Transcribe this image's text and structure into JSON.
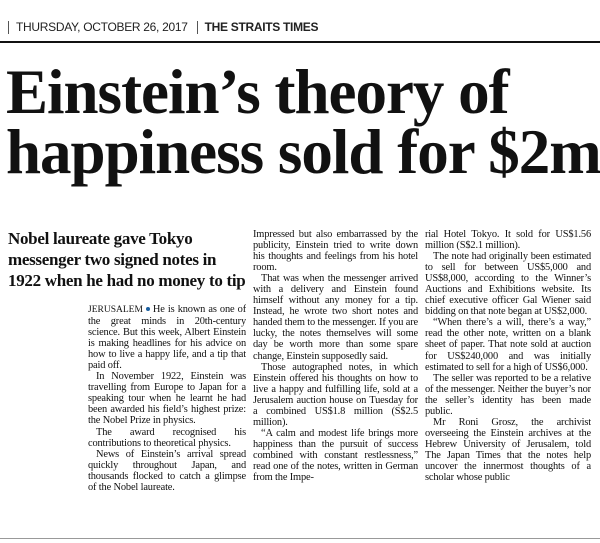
{
  "header": {
    "date": "THURSDAY, OCTOBER 26, 2017",
    "publication": "THE STRAITS TIMES"
  },
  "article": {
    "headline_lines": [
      "Einstein’s theory of",
      "happiness sold for $2m"
    ],
    "subheadline_lines": [
      "Nobel laureate gave Tokyo",
      "messenger two signed notes in",
      "1922 when he had no money to tip"
    ],
    "dateline": "JERUSALEM",
    "columns": [
      [
        "He is known as one of the great minds in 20th-century science. But this week, Albert Einstein is making headlines for his advice on how to live a happy life, and a tip that paid off.",
        "In November 1922, Einstein was travelling from Europe to Japan for a speaking tour when he learnt he had been awarded his field’s highest prize: the Nobel Prize in physics.",
        "The award recognised his contributions to theoretical physics.",
        "News of Einstein’s arrival spread quickly throughout Japan, and thousands flocked to catch a glimpse of the Nobel laureate."
      ],
      [
        "Impressed but also embarrassed by the publicity, Einstein tried to write down his thoughts and feelings from his hotel room.",
        "That was when the messenger arrived with a delivery and Einstein found himself without any money for a tip. Instead, he wrote two short notes and handed them to the messenger. If you are lucky, the notes themselves will some day be worth more than some spare change, Einstein supposedly said.",
        "Those autographed notes, in which Einstein offered his thoughts on how to live a happy and fulfilling life, sold at a Jerusalem auction house on Tuesday for a combined US$1.8 million (S$2.5 million).",
        "“A calm and modest life brings more happiness than the pursuit of success combined with constant restlessness,” read one of the notes, written in German from the Impe-"
      ],
      [
        "rial Hotel Tokyo. It sold for US$1.56 million (S$2.1 million).",
        "The note had originally been estimated to sell for between US$5,000 and US$8,000, according to the Winner’s Auctions and Exhibitions website. Its chief executive officer Gal Wiener said bidding on that note began at US$2,000.",
        "“When there’s a will, there’s a way,” read the other note, written on a blank sheet of paper. That note sold at auction for US$240,000 and was initially estimated to sell for a high of US$6,000.",
        "The seller was reported to be a relative of the messenger. Neither the buyer’s nor the seller’s identity has been made public.",
        "Mr Roni Grosz, the archivist overseeing the Einstein archives at the Hebrew University of Jerusalem, told The Japan Times that the notes help uncover the innermost thoughts of a scholar whose public"
      ]
    ]
  }
}
